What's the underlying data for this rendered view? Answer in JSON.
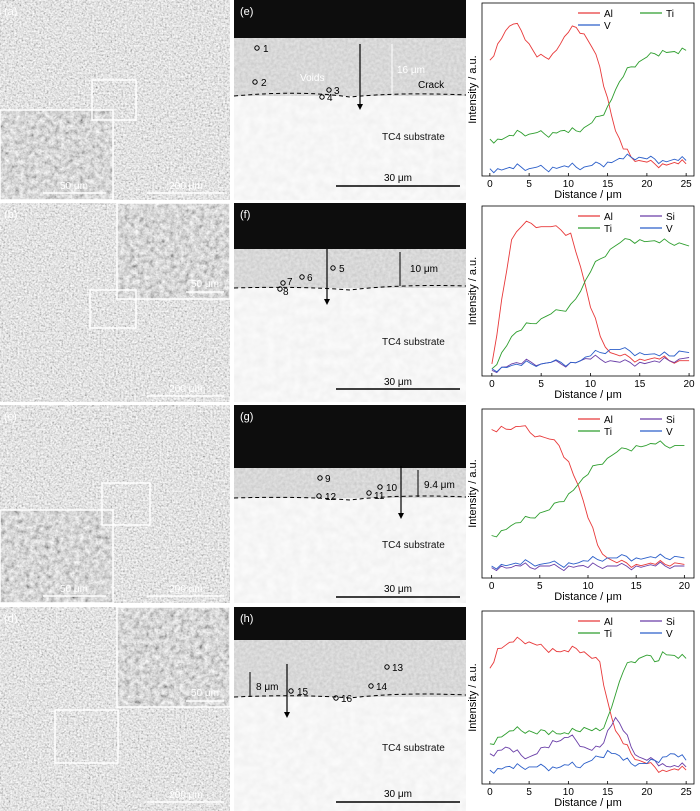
{
  "rows": [
    {
      "sem_label": "(a)",
      "sem_inset_scale": "50 μm",
      "sem_scale": "200 μm",
      "cs_label": "(e)",
      "cs_points": [
        "1",
        "2",
        "3",
        "4"
      ],
      "cs_annotations": [
        "Voids",
        "16 μm",
        "Crack"
      ],
      "cs_substrate": "TC4 substrate",
      "cs_scale": "30 μm"
    },
    {
      "sem_label": "(b)",
      "sem_inset_scale": "50 μm",
      "sem_scale": "200 μm",
      "cs_label": "(f)",
      "cs_points": [
        "5",
        "6",
        "7",
        "8"
      ],
      "cs_annotations": [
        "10 μm"
      ],
      "cs_substrate": "TC4 substrate",
      "cs_scale": "30 μm"
    },
    {
      "sem_label": "(c)",
      "sem_inset_scale": "50 μm",
      "sem_scale": "200 μm",
      "cs_label": "(g)",
      "cs_points": [
        "9",
        "10",
        "11",
        "12"
      ],
      "cs_annotations": [
        "9.4 μm"
      ],
      "cs_substrate": "TC4 substrate",
      "cs_scale": "30 μm"
    },
    {
      "sem_label": "(d)",
      "sem_inset_scale": "50 μm",
      "sem_scale": "200 μm",
      "cs_label": "(h)",
      "cs_points": [
        "13",
        "14",
        "15",
        "16"
      ],
      "cs_annotations": [
        "8 μm"
      ],
      "cs_substrate": "TC4 substrate",
      "cs_scale": "30 μm"
    }
  ],
  "colors": {
    "Al": "#e8393a",
    "Ti": "#2e9e2e",
    "Si": "#6a3fa8",
    "V": "#2c5fc9"
  },
  "chart_data": [
    {
      "type": "line",
      "xlabel": "Distance / μm",
      "ylabel": "Intensity / a.u.",
      "xlim": [
        -1,
        26
      ],
      "xticks": [
        0,
        5,
        10,
        15,
        20,
        25
      ],
      "legend": [
        "Al",
        "Ti",
        "V"
      ],
      "series": [
        {
          "name": "Al",
          "x": [
            0,
            1,
            2,
            3,
            4,
            5,
            6,
            7,
            8,
            9,
            10,
            11,
            12,
            13,
            14,
            15,
            16,
            17,
            18,
            19,
            20,
            21,
            22,
            23,
            24,
            25
          ],
          "y": [
            0.68,
            0.78,
            0.86,
            0.9,
            0.86,
            0.78,
            0.7,
            0.7,
            0.72,
            0.78,
            0.85,
            0.88,
            0.84,
            0.76,
            0.64,
            0.45,
            0.25,
            0.14,
            0.09,
            0.07,
            0.06,
            0.05,
            0.05,
            0.05,
            0.05,
            0.05
          ]
        },
        {
          "name": "Ti",
          "x": [
            0,
            1,
            2,
            3,
            4,
            5,
            6,
            7,
            8,
            9,
            10,
            11,
            12,
            13,
            14,
            15,
            16,
            17,
            18,
            19,
            20,
            21,
            22,
            23,
            24,
            25
          ],
          "y": [
            0.2,
            0.2,
            0.21,
            0.22,
            0.24,
            0.23,
            0.24,
            0.23,
            0.24,
            0.25,
            0.24,
            0.25,
            0.27,
            0.3,
            0.34,
            0.4,
            0.5,
            0.58,
            0.64,
            0.67,
            0.7,
            0.72,
            0.74,
            0.73,
            0.72,
            0.74
          ]
        },
        {
          "name": "V",
          "x": [
            0,
            1,
            2,
            3,
            4,
            5,
            6,
            7,
            8,
            9,
            10,
            11,
            12,
            13,
            14,
            15,
            16,
            17,
            18,
            19,
            20,
            21,
            22,
            23,
            24,
            25
          ],
          "y": [
            0.02,
            0.02,
            0.02,
            0.02,
            0.03,
            0.02,
            0.03,
            0.02,
            0.03,
            0.03,
            0.03,
            0.03,
            0.03,
            0.04,
            0.05,
            0.06,
            0.07,
            0.08,
            0.09,
            0.09,
            0.08,
            0.08,
            0.07,
            0.07,
            0.07,
            0.07
          ]
        }
      ]
    },
    {
      "type": "line",
      "xlabel": "Distance / μm",
      "ylabel": "Intensity / a.u.",
      "xlim": [
        -1,
        20.5
      ],
      "xticks": [
        0,
        5,
        10,
        15,
        20
      ],
      "legend": [
        "Al",
        "Si",
        "Ti",
        "V"
      ],
      "series": [
        {
          "name": "Al",
          "x": [
            0,
            1,
            2,
            3,
            4,
            5,
            6,
            7,
            8,
            9,
            10,
            11,
            12,
            13,
            14,
            15,
            16,
            17,
            18,
            19,
            20
          ],
          "y": [
            0.05,
            0.45,
            0.82,
            0.9,
            0.92,
            0.9,
            0.9,
            0.88,
            0.86,
            0.65,
            0.4,
            0.22,
            0.12,
            0.1,
            0.09,
            0.08,
            0.08,
            0.08,
            0.07,
            0.07,
            0.07
          ]
        },
        {
          "name": "Si",
          "x": [
            0,
            1,
            2,
            3,
            4,
            5,
            6,
            7,
            8,
            9,
            10,
            11,
            12,
            13,
            14,
            15,
            16,
            17,
            18,
            19,
            20
          ],
          "y": [
            0.01,
            0.03,
            0.05,
            0.05,
            0.06,
            0.05,
            0.06,
            0.05,
            0.06,
            0.07,
            0.08,
            0.08,
            0.07,
            0.06,
            0.06,
            0.06,
            0.06,
            0.06,
            0.07,
            0.08,
            0.09
          ]
        },
        {
          "name": "Ti",
          "x": [
            0,
            1,
            2,
            3,
            4,
            5,
            6,
            7,
            8,
            9,
            10,
            11,
            12,
            13,
            14,
            15,
            16,
            17,
            18,
            19,
            20
          ],
          "y": [
            0.02,
            0.12,
            0.22,
            0.26,
            0.3,
            0.33,
            0.36,
            0.38,
            0.42,
            0.5,
            0.62,
            0.7,
            0.76,
            0.8,
            0.82,
            0.82,
            0.81,
            0.8,
            0.8,
            0.8,
            0.78
          ]
        },
        {
          "name": "V",
          "x": [
            0,
            1,
            2,
            3,
            4,
            5,
            6,
            7,
            8,
            9,
            10,
            11,
            12,
            13,
            14,
            15,
            16,
            17,
            18,
            19,
            20
          ],
          "y": [
            0.02,
            0.03,
            0.04,
            0.04,
            0.05,
            0.05,
            0.06,
            0.06,
            0.06,
            0.07,
            0.1,
            0.12,
            0.14,
            0.14,
            0.13,
            0.12,
            0.11,
            0.1,
            0.1,
            0.13,
            0.12
          ]
        }
      ]
    },
    {
      "type": "line",
      "xlabel": "Distance / μm",
      "ylabel": "Intensity / a.u.",
      "xlim": [
        -1,
        21
      ],
      "xticks": [
        0,
        5,
        10,
        15,
        20
      ],
      "legend": [
        "Al",
        "Si",
        "Ti",
        "V"
      ],
      "series": [
        {
          "name": "Al",
          "x": [
            0,
            1,
            2,
            3,
            4,
            5,
            6,
            7,
            8,
            9,
            10,
            11,
            12,
            13,
            14,
            15,
            16,
            17,
            18,
            19,
            20
          ],
          "y": [
            0.9,
            0.92,
            0.9,
            0.92,
            0.88,
            0.86,
            0.84,
            0.8,
            0.7,
            0.55,
            0.35,
            0.18,
            0.1,
            0.07,
            0.07,
            0.06,
            0.06,
            0.06,
            0.06,
            0.07,
            0.06
          ]
        },
        {
          "name": "Si",
          "x": [
            0,
            1,
            2,
            3,
            4,
            5,
            6,
            7,
            8,
            9,
            10,
            11,
            12,
            13,
            14,
            15,
            16,
            17,
            18,
            19,
            20
          ],
          "y": [
            0.04,
            0.05,
            0.04,
            0.05,
            0.04,
            0.05,
            0.05,
            0.04,
            0.05,
            0.05,
            0.04,
            0.05,
            0.05,
            0.05,
            0.05,
            0.05,
            0.05,
            0.05,
            0.05,
            0.05,
            0.05
          ]
        },
        {
          "name": "Ti",
          "x": [
            0,
            1,
            2,
            3,
            4,
            5,
            6,
            7,
            8,
            9,
            10,
            11,
            12,
            13,
            14,
            15,
            16,
            17,
            18,
            19,
            20
          ],
          "y": [
            0.24,
            0.27,
            0.3,
            0.32,
            0.35,
            0.38,
            0.4,
            0.45,
            0.5,
            0.56,
            0.62,
            0.68,
            0.72,
            0.76,
            0.78,
            0.8,
            0.8,
            0.81,
            0.8,
            0.8,
            0.8
          ]
        },
        {
          "name": "V",
          "x": [
            0,
            1,
            2,
            3,
            4,
            5,
            6,
            7,
            8,
            9,
            10,
            11,
            12,
            13,
            14,
            15,
            16,
            17,
            18,
            19,
            20
          ],
          "y": [
            0.05,
            0.06,
            0.06,
            0.06,
            0.07,
            0.06,
            0.07,
            0.06,
            0.07,
            0.07,
            0.08,
            0.09,
            0.1,
            0.1,
            0.11,
            0.1,
            0.1,
            0.1,
            0.1,
            0.11,
            0.1
          ]
        }
      ]
    },
    {
      "type": "line",
      "xlabel": "Distance / μm",
      "ylabel": "Intensity / a.u.",
      "xlim": [
        -1,
        26
      ],
      "xticks": [
        0,
        5,
        10,
        15,
        20,
        25
      ],
      "legend": [
        "Al",
        "Si",
        "Ti",
        "V"
      ],
      "series": [
        {
          "name": "Al",
          "x": [
            0,
            1,
            2,
            3,
            4,
            5,
            6,
            7,
            8,
            9,
            10,
            11,
            12,
            13,
            14,
            15,
            16,
            17,
            18,
            19,
            20,
            21,
            22,
            23,
            24,
            25
          ],
          "y": [
            0.68,
            0.8,
            0.82,
            0.84,
            0.85,
            0.84,
            0.82,
            0.8,
            0.8,
            0.78,
            0.78,
            0.8,
            0.78,
            0.74,
            0.72,
            0.48,
            0.3,
            0.22,
            0.16,
            0.12,
            0.1,
            0.08,
            0.06,
            0.06,
            0.06,
            0.06
          ]
        },
        {
          "name": "Si",
          "x": [
            0,
            1,
            2,
            3,
            4,
            5,
            6,
            7,
            8,
            9,
            10,
            11,
            12,
            13,
            14,
            15,
            16,
            17,
            18,
            19,
            20,
            21,
            22,
            23,
            24,
            25
          ],
          "y": [
            0.16,
            0.18,
            0.2,
            0.17,
            0.15,
            0.14,
            0.16,
            0.2,
            0.24,
            0.24,
            0.26,
            0.24,
            0.2,
            0.18,
            0.2,
            0.3,
            0.38,
            0.3,
            0.2,
            0.14,
            0.12,
            0.12,
            0.1,
            0.08,
            0.08,
            0.08
          ]
        },
        {
          "name": "Ti",
          "x": [
            0,
            1,
            2,
            3,
            4,
            5,
            6,
            7,
            8,
            9,
            10,
            11,
            12,
            13,
            14,
            15,
            16,
            17,
            18,
            19,
            20,
            21,
            22,
            23,
            24,
            25
          ],
          "y": [
            0.22,
            0.26,
            0.28,
            0.3,
            0.3,
            0.3,
            0.28,
            0.3,
            0.3,
            0.28,
            0.28,
            0.3,
            0.32,
            0.3,
            0.3,
            0.38,
            0.52,
            0.66,
            0.72,
            0.74,
            0.76,
            0.72,
            0.78,
            0.76,
            0.74,
            0.74
          ]
        },
        {
          "name": "V",
          "x": [
            0,
            1,
            2,
            3,
            4,
            5,
            6,
            7,
            8,
            9,
            10,
            11,
            12,
            13,
            14,
            15,
            16,
            17,
            18,
            19,
            20,
            21,
            22,
            23,
            24,
            25
          ],
          "y": [
            0.06,
            0.07,
            0.08,
            0.07,
            0.08,
            0.08,
            0.08,
            0.08,
            0.08,
            0.08,
            0.09,
            0.08,
            0.1,
            0.12,
            0.14,
            0.18,
            0.16,
            0.12,
            0.1,
            0.1,
            0.1,
            0.12,
            0.14,
            0.16,
            0.14,
            0.12
          ]
        }
      ]
    }
  ]
}
